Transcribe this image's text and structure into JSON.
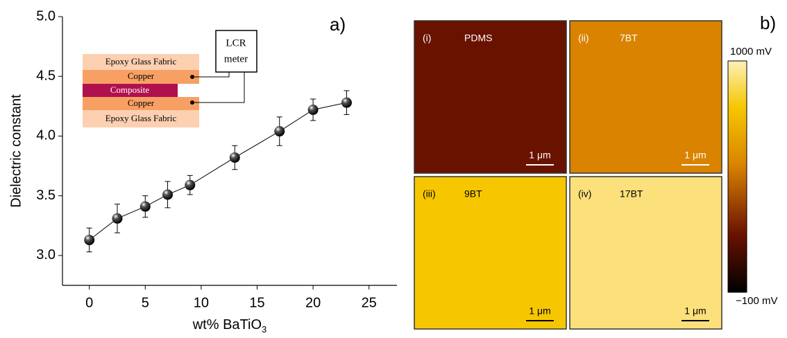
{
  "chart_data": {
    "type": "line",
    "panel_label": "a)",
    "xlabel": [
      "wt% BaTiO",
      "3"
    ],
    "ylabel": "Dielectric constant",
    "x": [
      0,
      2.5,
      5,
      7,
      9,
      13,
      17,
      20,
      23
    ],
    "series": [
      {
        "values": [
          3.13,
          3.31,
          3.41,
          3.51,
          3.59,
          3.82,
          4.04,
          4.22,
          4.28
        ],
        "errors": [
          0.1,
          0.12,
          0.09,
          0.11,
          0.08,
          0.1,
          0.12,
          0.09,
          0.1
        ],
        "color": "#000000"
      }
    ],
    "xlim": [
      -2.4,
      27.5
    ],
    "ylim": [
      2.75,
      5.0
    ],
    "xticks": [
      0,
      5,
      10,
      15,
      20,
      25
    ],
    "yticks": [
      {
        "value": 3.0,
        "label": "3.0"
      },
      {
        "value": 3.5,
        "label": "3.5"
      },
      {
        "value": 4.0,
        "label": "4.0"
      },
      {
        "value": 4.5,
        "label": "4.5"
      },
      {
        "value": 5.0,
        "label": "5.0"
      }
    ],
    "inset": {
      "layers": [
        "Epoxy Glass Fabric",
        "Copper",
        "Composite",
        "Copper",
        "Epoxy Glass Fabric"
      ],
      "meter": [
        "LCR",
        "meter"
      ]
    }
  },
  "panel_b": {
    "panel_label": "b)",
    "tiles": [
      {
        "index": "(i)",
        "label": "PDMS",
        "scale": "1 μm",
        "color": "#6a1200"
      },
      {
        "index": "(ii)",
        "label": "7BT",
        "scale": "1 μm",
        "color": "#d98300"
      },
      {
        "index": "(iii)",
        "label": "9BT",
        "scale": "1 μm",
        "color": "#f6c700"
      },
      {
        "index": "(iv)",
        "label": "17BT",
        "scale": "1 μm",
        "color": "#fbe07c"
      }
    ],
    "colorbar": {
      "top": "1000 mV",
      "bottom": "−100 mV"
    }
  }
}
